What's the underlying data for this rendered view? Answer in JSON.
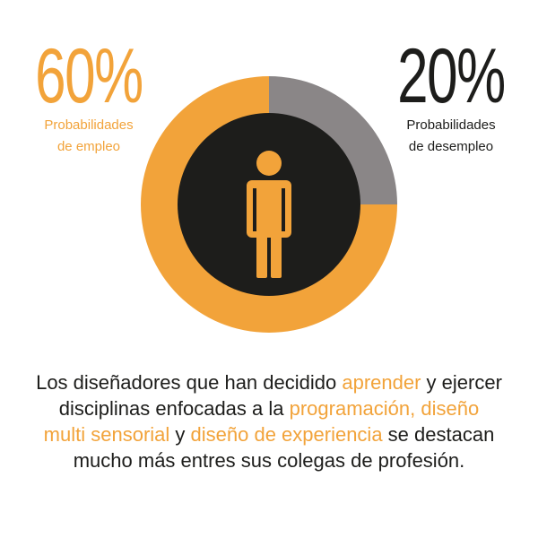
{
  "colors": {
    "employed": "#F2A33A",
    "unemployed": "#8a8687",
    "center": "#1d1d1b",
    "figure": "#F2A33A",
    "text_dark": "#1d1d1b"
  },
  "stats": {
    "employed": {
      "value": "60%",
      "label_line1": "Probabilidades",
      "label_line2": "de empleo"
    },
    "unemployed": {
      "value": "20%",
      "label_line1": "Probabilidades",
      "label_line2": "de desempleo"
    }
  },
  "chart_data": {
    "type": "pie",
    "style": "donut",
    "categories": [
      "Probabilidades de desempleo",
      "Probabilidades de empleo"
    ],
    "values": [
      20,
      60
    ],
    "unit": "%",
    "colors": [
      "#8a8687",
      "#F2A33A"
    ],
    "center_icon": "person-icon"
  },
  "caption": {
    "t1": "Los diseñadores que han decidido ",
    "h1": "aprender",
    "t2": " y ejercer disciplinas enfocadas a la ",
    "h2": "programación,",
    "t3": " ",
    "h3": "diseño multi sensorial",
    "t4": " y ",
    "h4": "diseño de experiencia",
    "t5": " se destacan mucho más entres sus colegas de profesión."
  }
}
